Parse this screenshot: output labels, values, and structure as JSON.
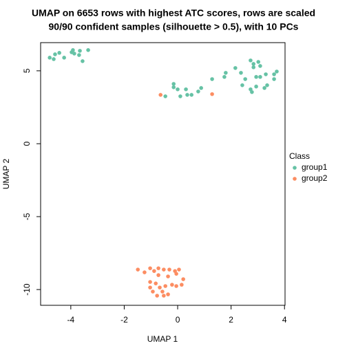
{
  "chart_data": {
    "type": "scatter",
    "title": "UMAP on 6653 rows with highest ATC scores, rows are scaled",
    "subtitle": "90/90 confident samples (silhouette > 0.5), with 10 PCs",
    "x_label": "UMAP 1",
    "y_label": "UMAP 2",
    "legend_title": "Class",
    "xlim": [
      -5.13,
      4.02
    ],
    "ylim": [
      -11.08,
      6.93
    ],
    "xticks": [
      -4,
      -2,
      0,
      2,
      4
    ],
    "yticks": [
      -10,
      -5,
      0,
      5
    ],
    "series": [
      {
        "name": "group1",
        "color": "#66C2A5",
        "x": [
          -4.79,
          -4.64,
          -4.43,
          -4.25,
          -4.59,
          -3.92,
          -3.87,
          -3.66,
          -3.35,
          -3.56,
          -3.97,
          -3.69,
          -0.15,
          -0.15,
          0,
          0.1,
          -0.46,
          0.31,
          0.36,
          0.52,
          0.77,
          0.88,
          1.29,
          1.8,
          1.75,
          2.16,
          2.37,
          2.53,
          2.73,
          2.84,
          3.02,
          3.09,
          2.84,
          2.94,
          3.09,
          3.3,
          2.42,
          2.73,
          2.94,
          3.25,
          3.35,
          3.61,
          3.71,
          3.61,
          2.78
        ],
        "y": [
          5.9,
          5.8,
          6.23,
          5.9,
          6.13,
          6.42,
          6.18,
          6.37,
          6.42,
          5.66,
          6.27,
          6.08,
          4.1,
          3.87,
          3.73,
          3.25,
          3.25,
          3.73,
          3.35,
          3.35,
          3.58,
          3.82,
          4.43,
          4.86,
          4.58,
          5.19,
          4.86,
          4.43,
          5.71,
          5.47,
          5.61,
          5.33,
          5.24,
          4.58,
          4.58,
          4.76,
          4.01,
          3.73,
          3.92,
          3.82,
          4.01,
          4.76,
          4.95,
          4.43,
          3.54
        ]
      },
      {
        "name": "group2",
        "color": "#FC8D62",
        "x": [
          -0.64,
          1.29,
          -1.49,
          -1.24,
          -1.03,
          -0.88,
          -0.72,
          -0.52,
          -0.31,
          -0.1,
          0.05,
          -0.72,
          -0.36,
          -0.05,
          0.21,
          0.15,
          -0.05,
          -0.21,
          -0.46,
          -0.67,
          -0.82,
          -1.03,
          -0.93,
          -0.57,
          -0.36,
          -0.77,
          -0.52,
          -1.03
        ],
        "y": [
          3.35,
          3.4,
          -8.63,
          -8.82,
          -8.54,
          -8.73,
          -8.54,
          -8.63,
          -8.63,
          -8.73,
          -8.63,
          -9.01,
          -9.1,
          -8.92,
          -9.29,
          -9.67,
          -9.76,
          -9.67,
          -9.76,
          -9.86,
          -9.58,
          -9.86,
          -10.14,
          -10.14,
          -10.33,
          -10.42,
          -10.42,
          -9.48
        ]
      }
    ]
  }
}
